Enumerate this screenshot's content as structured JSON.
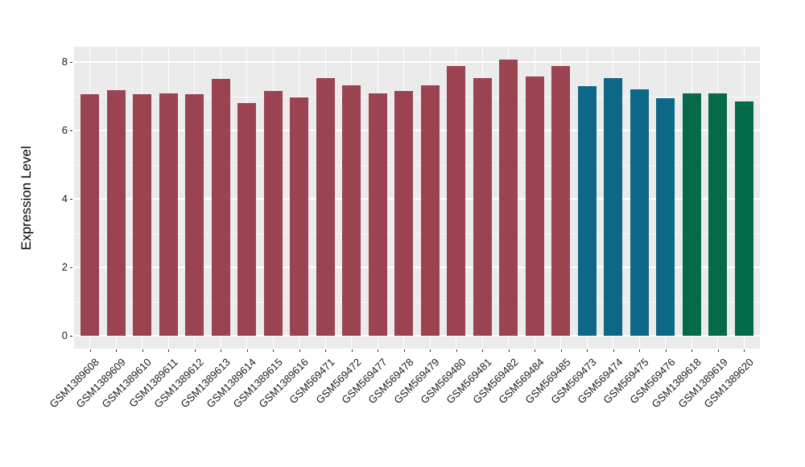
{
  "figure": {
    "background": "#FFFFFF",
    "panel_background": "#EBEBEB",
    "gridline_color": "#FFFFFF",
    "tick_text_color": "#1A1A1A",
    "axis_title_color": "#000000"
  },
  "chart_data": {
    "type": "bar",
    "title": "",
    "xlabel": "",
    "ylabel": "Expression Level",
    "ylim": [
      0,
      8.5
    ],
    "yticks": [
      0,
      2,
      4,
      6,
      8
    ],
    "yminorticks": [
      1,
      3,
      5,
      7
    ],
    "grid": "on",
    "legend": "none",
    "x_label_rotation_deg": 45,
    "palette": {
      "group_maroon": "#9B4350",
      "group_teal": "#0D6887",
      "group_green": "#046A4A"
    },
    "categories": [
      "GSM1389608",
      "GSM1389609",
      "GSM1389610",
      "GSM1389611",
      "GSM1389612",
      "GSM1389613",
      "GSM1389614",
      "GSM1389615",
      "GSM1389616",
      "GSM569471",
      "GSM569472",
      "GSM569477",
      "GSM569478",
      "GSM569479",
      "GSM569480",
      "GSM569481",
      "GSM569482",
      "GSM569484",
      "GSM569485",
      "GSM569473",
      "GSM569474",
      "GSM569475",
      "GSM569476",
      "GSM1389618",
      "GSM1389619",
      "GSM1389620"
    ],
    "values": [
      7.06,
      7.18,
      7.06,
      7.08,
      7.05,
      7.5,
      6.8,
      7.15,
      6.96,
      7.52,
      7.32,
      7.08,
      7.15,
      7.32,
      7.88,
      7.54,
      8.08,
      7.58,
      7.88,
      7.3,
      7.53,
      7.21,
      6.95,
      7.08,
      7.08,
      6.85
    ],
    "bar_colors": [
      "#9B4350",
      "#9B4350",
      "#9B4350",
      "#9B4350",
      "#9B4350",
      "#9B4350",
      "#9B4350",
      "#9B4350",
      "#9B4350",
      "#9B4350",
      "#9B4350",
      "#9B4350",
      "#9B4350",
      "#9B4350",
      "#9B4350",
      "#9B4350",
      "#9B4350",
      "#9B4350",
      "#9B4350",
      "#0D6887",
      "#0D6887",
      "#0D6887",
      "#0D6887",
      "#046A4A",
      "#046A4A",
      "#046A4A"
    ]
  }
}
